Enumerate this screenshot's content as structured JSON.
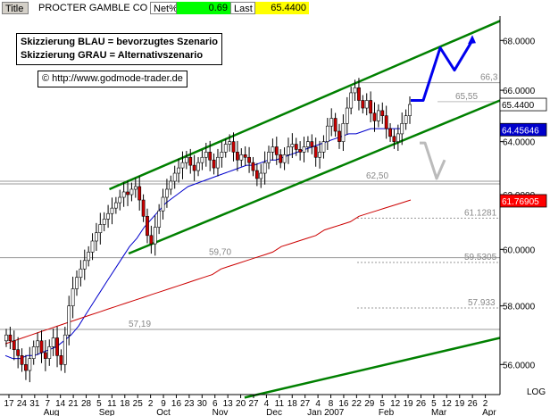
{
  "header": {
    "title_label": "Title",
    "name": "PROCTER   GAMBLE CO",
    "net_label": "Net%",
    "net_value": "0.69",
    "last_label": "Last",
    "last_value": "65.4400",
    "net_color": "#00ff00",
    "last_color": "#ffff00"
  },
  "annotations": {
    "line1": "Skizzierung BLAU = bevorzugtes Szenario",
    "line2": "Skizzierung GRAU = Alternativszenario",
    "url": "© http://www.godmode-trader.de"
  },
  "chart_data": {
    "type": "candlestick",
    "title": "",
    "y_scale_label": "LOG",
    "ylim": [
      55.0,
      69.0
    ],
    "y_ticks": [
      "68.0000",
      "66.0000",
      "64.0000",
      "62.0000",
      "60.0000",
      "58.0000",
      "56.0000"
    ],
    "x_day_ticks": [
      "17",
      "24",
      "31",
      "7",
      "14",
      "21",
      "28",
      "5",
      "11",
      "18",
      "25",
      "2",
      "9",
      "16",
      "23",
      "30",
      "6",
      "13",
      "20",
      "27",
      "4",
      "11",
      "18",
      "27",
      "4",
      "8",
      "16",
      "22",
      "29",
      "5",
      "12",
      "19",
      "26",
      "5",
      "12",
      "19",
      "26",
      "2"
    ],
    "x_month_labels": [
      "Aug",
      "Sep",
      "Oct",
      "Nov",
      "Dec",
      "Jan 2007",
      "Feb",
      "Mar",
      "Apr"
    ],
    "price_badges": [
      {
        "label": "65.4400",
        "value": 65.44,
        "bg": "#ffffff",
        "fg": "#000000"
      },
      {
        "label": "64.45646",
        "value": 64.46,
        "bg": "#0000cc",
        "fg": "#ffffff"
      },
      {
        "label": "61.76905",
        "value": 61.77,
        "bg": "#ff0000",
        "fg": "#ffffff"
      }
    ],
    "level_labels": [
      {
        "label": "66,3",
        "value": 66.3
      },
      {
        "label": "65,55",
        "value": 65.55
      },
      {
        "label": "62,50",
        "value": 62.5
      },
      {
        "label": "61.1281",
        "value": 61.13
      },
      {
        "label": "59,70",
        "value": 59.7
      },
      {
        "label": "59.5305",
        "value": 59.53
      },
      {
        "label": "57.933",
        "value": 57.93
      },
      {
        "label": "57,19",
        "value": 57.19
      }
    ],
    "series": [
      {
        "name": "price",
        "color": "#000000",
        "values": [
          57.0,
          56.8,
          56.5,
          56.3,
          56.0,
          55.8,
          56.2,
          56.6,
          56.8,
          56.4,
          56.2,
          56.6,
          56.9,
          56.3,
          56.0,
          57.0,
          58.0,
          58.6,
          59.0,
          59.3,
          59.6,
          59.9,
          60.3,
          60.6,
          60.9,
          61.1,
          61.3,
          61.5,
          61.7,
          61.9,
          62.1,
          62.0,
          62.2,
          62.3,
          61.8,
          61.2,
          60.5,
          60.2,
          60.8,
          61.4,
          61.9,
          62.2,
          62.5,
          62.8,
          63.0,
          63.2,
          63.4,
          63.1,
          62.9,
          63.2,
          63.4,
          63.6,
          63.3,
          63.0,
          63.4,
          63.6,
          63.9,
          64.0,
          63.6,
          63.3,
          63.5,
          63.4,
          63.2,
          62.9,
          62.6,
          62.8,
          63.2,
          63.6,
          63.8,
          63.5,
          63.2,
          63.5,
          63.8,
          63.9,
          63.7,
          63.6,
          63.8,
          64.0,
          63.8,
          63.4,
          63.6,
          64.0,
          64.6,
          64.9,
          64.4,
          64.0,
          64.7,
          65.3,
          65.9,
          66.1,
          65.6,
          65.3,
          65.6,
          65.1,
          64.8,
          65.2,
          65.0,
          64.5,
          64.2,
          64.0,
          64.3,
          64.7,
          65.0,
          65.44
        ]
      },
      {
        "name": "ma_blue",
        "color": "#0000cc",
        "values": [
          56.3,
          56.2,
          56.2,
          56.3,
          56.3,
          56.4,
          56.5,
          56.6,
          56.8,
          57.0,
          57.3,
          57.7,
          58.1,
          58.5,
          58.9,
          59.3,
          59.7,
          60.1,
          60.4,
          60.8,
          61.1,
          61.4,
          61.7,
          61.9,
          62.1,
          62.3,
          62.4,
          62.5,
          62.6,
          62.7,
          62.8,
          62.9,
          63.0,
          63.1,
          63.1,
          63.2,
          63.3,
          63.3,
          63.4,
          63.5,
          63.6,
          63.7,
          63.8,
          63.9,
          64.0,
          64.1,
          64.2,
          64.3,
          64.3,
          64.4,
          64.5,
          64.5,
          64.5,
          64.5,
          64.5
        ]
      },
      {
        "name": "ma_red",
        "color": "#cc0000",
        "values": [
          56.7,
          56.8,
          56.9,
          57.0,
          57.1,
          57.2,
          57.3,
          57.4,
          57.5,
          57.6,
          57.7,
          57.8,
          57.9,
          58.0,
          58.1,
          58.2,
          58.3,
          58.4,
          58.5,
          58.6,
          58.7,
          58.8,
          58.9,
          59.0,
          59.1,
          59.3,
          59.4,
          59.5,
          59.6,
          59.7,
          59.8,
          59.9,
          60.1,
          60.2,
          60.3,
          60.4,
          60.5,
          60.7,
          60.8,
          60.9,
          61.0,
          61.2,
          61.3,
          61.4,
          61.5,
          61.6,
          61.7,
          61.8
        ]
      },
      {
        "name": "blue_scenario",
        "color": "#0000ee",
        "values": [
          65.6,
          65.6,
          67.7,
          66.8,
          68.0
        ]
      },
      {
        "name": "grey_scenario",
        "color": "#bbbbbb",
        "values": [
          63.95,
          62.6
        ]
      }
    ],
    "grid": false,
    "legend": "none"
  }
}
